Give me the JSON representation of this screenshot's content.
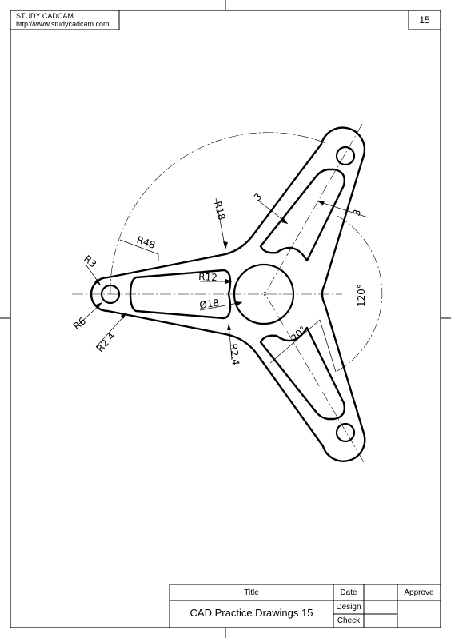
{
  "header": {
    "company": "STUDY CADCAM",
    "url": "http://www.studycadcam.com",
    "sheet_number": "15"
  },
  "title_block": {
    "title_label": "Title",
    "title_value": "CAD Practice Drawings 15",
    "date_label": "Date",
    "design_label": "Design",
    "check_label": "Check",
    "approve_label": "Approve"
  },
  "dimensions": {
    "r3": "R3",
    "r6": "R6",
    "r2_4_left": "R2.4",
    "r48": "R48",
    "r18": "R18",
    "r12": "R12",
    "dia18": "Ø18",
    "r2_4_mid": "R2.4",
    "thick_a": "3",
    "thick_b": "3",
    "angle_120": "120°",
    "angle_20": "20°"
  }
}
